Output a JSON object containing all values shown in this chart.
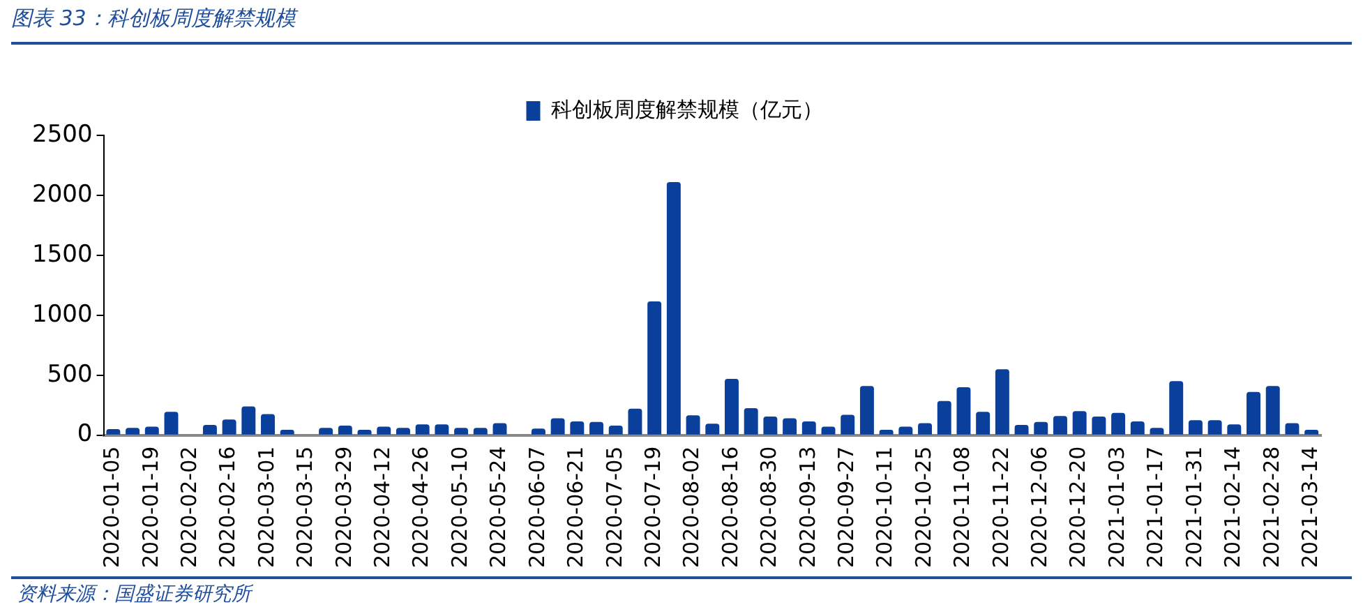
{
  "chart_data": {
    "type": "bar",
    "title": "图表 33：科创板周度解禁规模",
    "categories": [
      "2020-01-05",
      null,
      "2020-01-19",
      null,
      "2020-02-02",
      null,
      "2020-02-16",
      null,
      "2020-03-01",
      null,
      "2020-03-15",
      null,
      "2020-03-29",
      null,
      "2020-04-12",
      null,
      "2020-04-26",
      null,
      "2020-05-10",
      null,
      "2020-05-24",
      null,
      "2020-06-07",
      null,
      "2020-06-21",
      null,
      "2020-07-05",
      null,
      "2020-07-19",
      null,
      "2020-08-02",
      null,
      "2020-08-16",
      null,
      "2020-08-30",
      null,
      "2020-09-13",
      null,
      "2020-09-27",
      null,
      "2020-10-11",
      null,
      "2020-10-25",
      null,
      "2020-11-08",
      null,
      "2020-11-22",
      null,
      "2020-12-06",
      null,
      "2020-12-20",
      null,
      "2021-01-03",
      null,
      "2021-01-17",
      null,
      "2021-01-31",
      null,
      "2021-02-14",
      null,
      "2021-02-28",
      null,
      "2021-03-14"
    ],
    "series": [
      {
        "name": "科创板周度解禁规模（亿元）",
        "color": "#0a3f9c",
        "values": [
          50,
          60,
          70,
          195,
          null,
          85,
          130,
          240,
          175,
          45,
          null,
          60,
          80,
          45,
          70,
          60,
          90,
          90,
          60,
          60,
          100,
          null,
          55,
          140,
          115,
          110,
          80,
          220,
          1115,
          2110,
          165,
          95,
          470,
          225,
          155,
          140,
          115,
          70,
          170,
          410,
          45,
          70,
          100,
          285,
          400,
          195,
          550,
          85,
          110,
          160,
          200,
          155,
          185,
          115,
          60,
          450,
          125,
          125,
          90,
          360,
          410,
          100,
          45
        ]
      }
    ],
    "ylim": [
      0,
      2500
    ],
    "yticks": [
      0,
      500,
      1000,
      1500,
      2000,
      2500
    ],
    "grid": false,
    "legend": "top",
    "annotations": [
      "资料来源：国盛证券研究所"
    ]
  }
}
